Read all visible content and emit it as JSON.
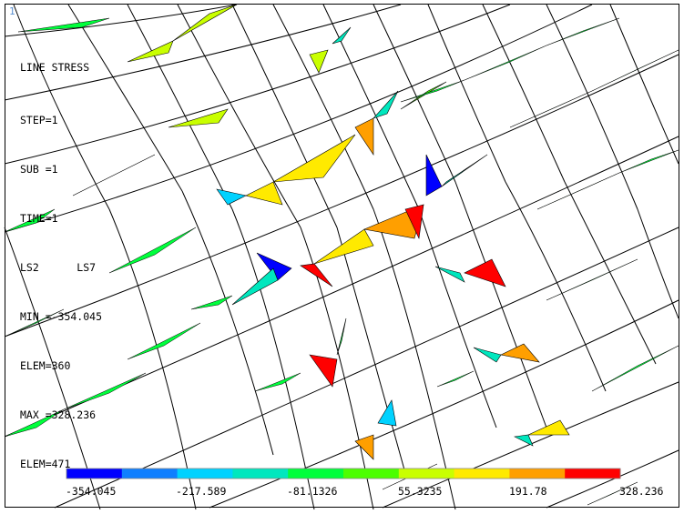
{
  "window_number": "1",
  "header": {
    "title": "LINE STRESS",
    "lines": [
      "STEP=1",
      "SUB =1",
      "TIME=1",
      "LS2      LS7",
      "MIN =-354.045",
      "ELEM=360",
      "MAX =328.236",
      "ELEM=471"
    ]
  },
  "legend": {
    "colors": [
      "#0000ff",
      "#0f7fff",
      "#00d2ff",
      "#00e7be",
      "#00ff3c",
      "#4cff00",
      "#c9ff00",
      "#ffea00",
      "#ff9f00",
      "#ff0000"
    ],
    "labels": [
      "-354.045",
      "-217.589",
      "-81.1326",
      "55.3235",
      "191.78",
      "328.236"
    ]
  }
}
